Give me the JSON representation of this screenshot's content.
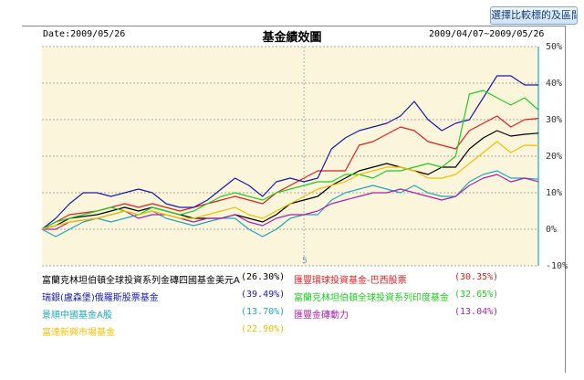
{
  "header": {
    "compare_button": "選擇比較標的及區間",
    "date_label": "Date:2009/05/26",
    "title": "基金績效圖",
    "range": "2009/04/07~2009/05/26"
  },
  "colors": {
    "plot_bg": "#fbf5dc",
    "grid": "#8f8f8f"
  },
  "chart_data": {
    "type": "line",
    "title": "基金績效圖",
    "yaxis_side": "right",
    "ylim": [
      -10,
      50
    ],
    "yticks": [
      "50%",
      "40%",
      "30%",
      "20%",
      "10%",
      "0%",
      "-10%"
    ],
    "ytick_values": [
      50,
      40,
      30,
      20,
      10,
      0,
      -10
    ],
    "x_marker_label": "5",
    "x_marker_index": 19,
    "grid": true,
    "n_points": 37,
    "series": [
      {
        "name": "富蘭克林坦伯頓全球投資系列金磚四國基金美元A",
        "value_label": "(26.30%)",
        "color": "#000000",
        "values": [
          0,
          1,
          3,
          3.5,
          4,
          5,
          6,
          5,
          6,
          5,
          4,
          3,
          3,
          3,
          4,
          3,
          2,
          4,
          7,
          8,
          9,
          12,
          14,
          16,
          17,
          18,
          17,
          16,
          15,
          17,
          17,
          22,
          25,
          27,
          25.5,
          26,
          26.3
        ]
      },
      {
        "name": "匯豐環球投資基金-巴西股票",
        "value_label": "(30.35%)",
        "color": "#dd2020",
        "values": [
          0,
          2,
          4,
          4.5,
          5,
          6,
          7,
          6,
          7,
          6,
          5,
          6,
          7,
          8,
          9,
          8,
          7,
          10,
          12,
          14,
          16,
          16,
          16,
          23,
          24,
          26,
          28,
          27,
          24,
          23,
          22,
          27,
          29,
          31,
          28,
          30,
          30.35
        ]
      },
      {
        "name": "瑞銀(盧森堡)俄羅斯股票基金",
        "value_label": "(39.49%)",
        "color": "#1a1aaa",
        "values": [
          0,
          3,
          7,
          10,
          10,
          9,
          10,
          11,
          10,
          7,
          6,
          6,
          8,
          11,
          14,
          12,
          9,
          13,
          14,
          13,
          14,
          22,
          25,
          27,
          28,
          29,
          31,
          35,
          30,
          27,
          29,
          30,
          36,
          42,
          42,
          39.5,
          39.49
        ]
      },
      {
        "name": "富蘭克林坦伯頓全球投資系列印度基金",
        "value_label": "(32.65%)",
        "color": "#22cc22",
        "values": [
          0,
          2,
          3,
          4,
          5,
          6,
          5,
          4,
          6,
          5,
          4,
          5,
          7,
          9,
          10,
          9,
          8,
          10,
          11,
          12,
          13,
          13,
          15,
          15,
          14,
          16,
          16,
          17,
          18,
          17,
          20,
          37,
          38,
          36,
          34,
          36,
          32.65
        ]
      },
      {
        "name": "景順中國基金A股",
        "value_label": "(13.70%)",
        "color": "#1fa8b8",
        "values": [
          0,
          -2,
          0,
          2,
          3,
          2,
          3,
          4,
          5,
          3,
          2,
          1,
          2,
          3,
          3,
          0,
          -2,
          0,
          3,
          4,
          4,
          8,
          10,
          11,
          12,
          11,
          10,
          12,
          10,
          9,
          9,
          13,
          15,
          16,
          14,
          14,
          13.7
        ]
      },
      {
        "name": "匯豐金磚動力",
        "value_label": "(13.04%)",
        "color": "#aa22aa",
        "values": [
          0,
          0,
          2,
          2.5,
          3,
          4,
          5,
          3,
          4,
          4,
          3,
          2,
          3,
          3,
          4,
          2,
          1,
          3,
          4,
          4,
          5,
          7,
          8,
          9,
          10,
          10,
          11,
          10,
          9,
          8,
          9,
          12,
          14,
          15,
          13,
          14,
          13.04
        ]
      },
      {
        "name": "富達新興市場基金",
        "value_label": "(22.90%)",
        "color": "#f0c000",
        "values": [
          0,
          1,
          2,
          2.5,
          3,
          4,
          5,
          4,
          5,
          4,
          3,
          3,
          4,
          5,
          6,
          4,
          3,
          5,
          7,
          9,
          11,
          12,
          13,
          15,
          16,
          17,
          17,
          16,
          14,
          14,
          15,
          18,
          21,
          24,
          21,
          23,
          22.9
        ]
      }
    ]
  }
}
